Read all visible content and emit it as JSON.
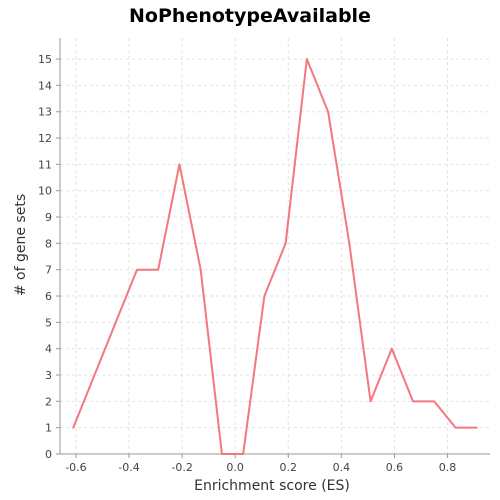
{
  "chart_data": {
    "type": "line",
    "title": "NoPhenotypeAvailable",
    "xlabel": "Enrichment score (ES)",
    "ylabel": "# of gene sets",
    "xlim": [
      -0.66,
      0.96
    ],
    "ylim": [
      0,
      15.8
    ],
    "x_ticks": [
      -0.6,
      -0.4,
      -0.2,
      0.0,
      0.2,
      0.4,
      0.6,
      0.8
    ],
    "x_tick_labels": [
      "-0.6",
      "-0.4",
      "-0.2",
      "0.0",
      "0.2",
      "0.4",
      "0.6",
      "0.8"
    ],
    "y_ticks": [
      0,
      1,
      2,
      3,
      4,
      5,
      6,
      7,
      8,
      9,
      10,
      11,
      12,
      13,
      14,
      15
    ],
    "y_tick_labels": [
      "0",
      "1",
      "2",
      "3",
      "4",
      "5",
      "6",
      "7",
      "8",
      "9",
      "10",
      "11",
      "12",
      "13",
      "14",
      "15"
    ],
    "grid": true,
    "color": "#f4777d",
    "series": [
      {
        "x": [
          -0.61,
          -0.37,
          -0.29,
          -0.21,
          -0.13,
          -0.05,
          0.03,
          0.11,
          0.19,
          0.27,
          0.35,
          0.43,
          0.51,
          0.59,
          0.67,
          0.75,
          0.83,
          0.91
        ],
        "y": [
          1,
          7,
          7,
          11,
          7,
          0,
          0,
          6,
          8,
          15,
          13,
          8,
          2,
          4,
          2,
          2,
          1,
          1
        ]
      }
    ]
  }
}
